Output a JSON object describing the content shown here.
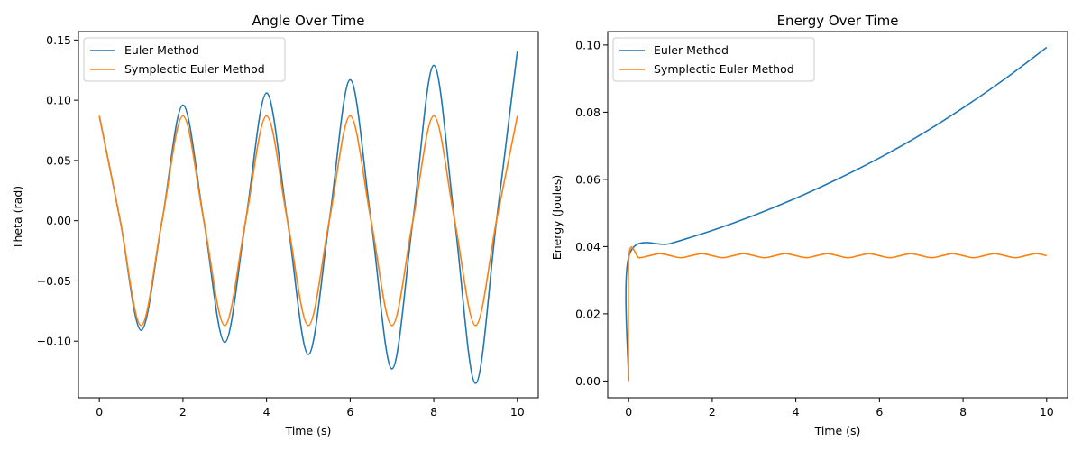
{
  "chart_data": [
    {
      "type": "line",
      "title": "Angle Over Time",
      "xlabel": "Time (s)",
      "ylabel": "Theta (rad)",
      "xlim": [
        -0.5,
        10.5
      ],
      "ylim": [
        -0.147,
        0.157
      ],
      "xticks": [
        0,
        2,
        4,
        6,
        8,
        10
      ],
      "xtick_labels": [
        "0",
        "2",
        "4",
        "6",
        "8",
        "10"
      ],
      "yticks": [
        -0.1,
        -0.05,
        0.0,
        0.05,
        0.1,
        0.15
      ],
      "ytick_labels": [
        "−0.10",
        "−0.05",
        "0.00",
        "0.05",
        "0.10",
        "0.15"
      ],
      "grid": false,
      "legend": "top-left",
      "series": [
        {
          "name": "Euler Method",
          "color": "#1f77b4",
          "x": [
            0,
            0.5,
            1,
            1.5,
            2,
            2.5,
            3,
            3.5,
            4,
            4.5,
            5,
            5.5,
            6,
            6.5,
            7,
            7.5,
            8,
            8.5,
            9,
            9.5,
            10
          ],
          "values": [
            0.087,
            0.0,
            -0.091,
            0.0,
            0.096,
            0.0,
            -0.101,
            0.0,
            0.106,
            0.0,
            -0.111,
            0.0,
            0.117,
            0.0,
            -0.123,
            0.0,
            0.129,
            0.0,
            -0.135,
            0.0,
            0.141
          ]
        },
        {
          "name": "Symplectic Euler Method",
          "color": "#ff7f0e",
          "x": [
            0,
            0.5,
            1,
            1.5,
            2,
            2.5,
            3,
            3.5,
            4,
            4.5,
            5,
            5.5,
            6,
            6.5,
            7,
            7.5,
            8,
            8.5,
            9,
            9.5,
            10
          ],
          "values": [
            0.087,
            0.0,
            -0.087,
            0.0,
            0.087,
            0.0,
            -0.087,
            0.0,
            0.087,
            0.0,
            -0.087,
            0.0,
            0.087,
            0.0,
            -0.087,
            0.0,
            0.087,
            0.0,
            -0.087,
            0.0,
            0.087
          ]
        }
      ]
    },
    {
      "type": "line",
      "title": "Energy Over Time",
      "xlabel": "Time (s)",
      "ylabel": "Energy (Joules)",
      "xlim": [
        -0.5,
        10.5
      ],
      "ylim": [
        -0.005,
        0.104
      ],
      "xticks": [
        0,
        2,
        4,
        6,
        8,
        10
      ],
      "xtick_labels": [
        "0",
        "2",
        "4",
        "6",
        "8",
        "10"
      ],
      "yticks": [
        0.0,
        0.02,
        0.04,
        0.06,
        0.08,
        0.1
      ],
      "ytick_labels": [
        "0.00",
        "0.02",
        "0.04",
        "0.06",
        "0.08",
        "0.10"
      ],
      "grid": false,
      "legend": "top-left",
      "series": [
        {
          "name": "Euler Method",
          "color": "#1f77b4",
          "x": [
            0,
            0.01,
            1,
            2,
            3,
            4,
            5,
            6,
            7,
            8,
            9,
            10
          ],
          "values": [
            0.0,
            0.0373,
            0.0409,
            0.0448,
            0.0493,
            0.0544,
            0.0601,
            0.0664,
            0.0734,
            0.0813,
            0.0899,
            0.0993
          ]
        },
        {
          "name": "Symplectic Euler Method",
          "color": "#ff7f0e",
          "x": [
            0,
            0.01,
            0.25,
            0.5,
            0.75,
            1,
            1.25,
            1.5,
            1.75,
            2,
            2.25,
            2.5,
            2.75,
            3,
            3.25,
            3.5,
            3.75,
            4,
            4.25,
            4.5,
            4.75,
            5,
            5.25,
            5.5,
            5.75,
            6,
            6.25,
            6.5,
            6.75,
            7,
            7.25,
            7.5,
            7.75,
            8,
            8.25,
            8.5,
            8.75,
            9,
            9.25,
            9.5,
            9.75,
            10
          ],
          "values": [
            0.0,
            0.0373,
            0.0367,
            0.0373,
            0.0379,
            0.0373,
            0.0367,
            0.0373,
            0.0379,
            0.0373,
            0.0367,
            0.0373,
            0.0379,
            0.0373,
            0.0367,
            0.0373,
            0.0379,
            0.0373,
            0.0367,
            0.0373,
            0.0379,
            0.0373,
            0.0367,
            0.0373,
            0.0379,
            0.0373,
            0.0367,
            0.0373,
            0.0379,
            0.0373,
            0.0367,
            0.0373,
            0.0379,
            0.0373,
            0.0367,
            0.0373,
            0.0379,
            0.0373,
            0.0367,
            0.0373,
            0.0379,
            0.0373
          ]
        }
      ]
    }
  ]
}
